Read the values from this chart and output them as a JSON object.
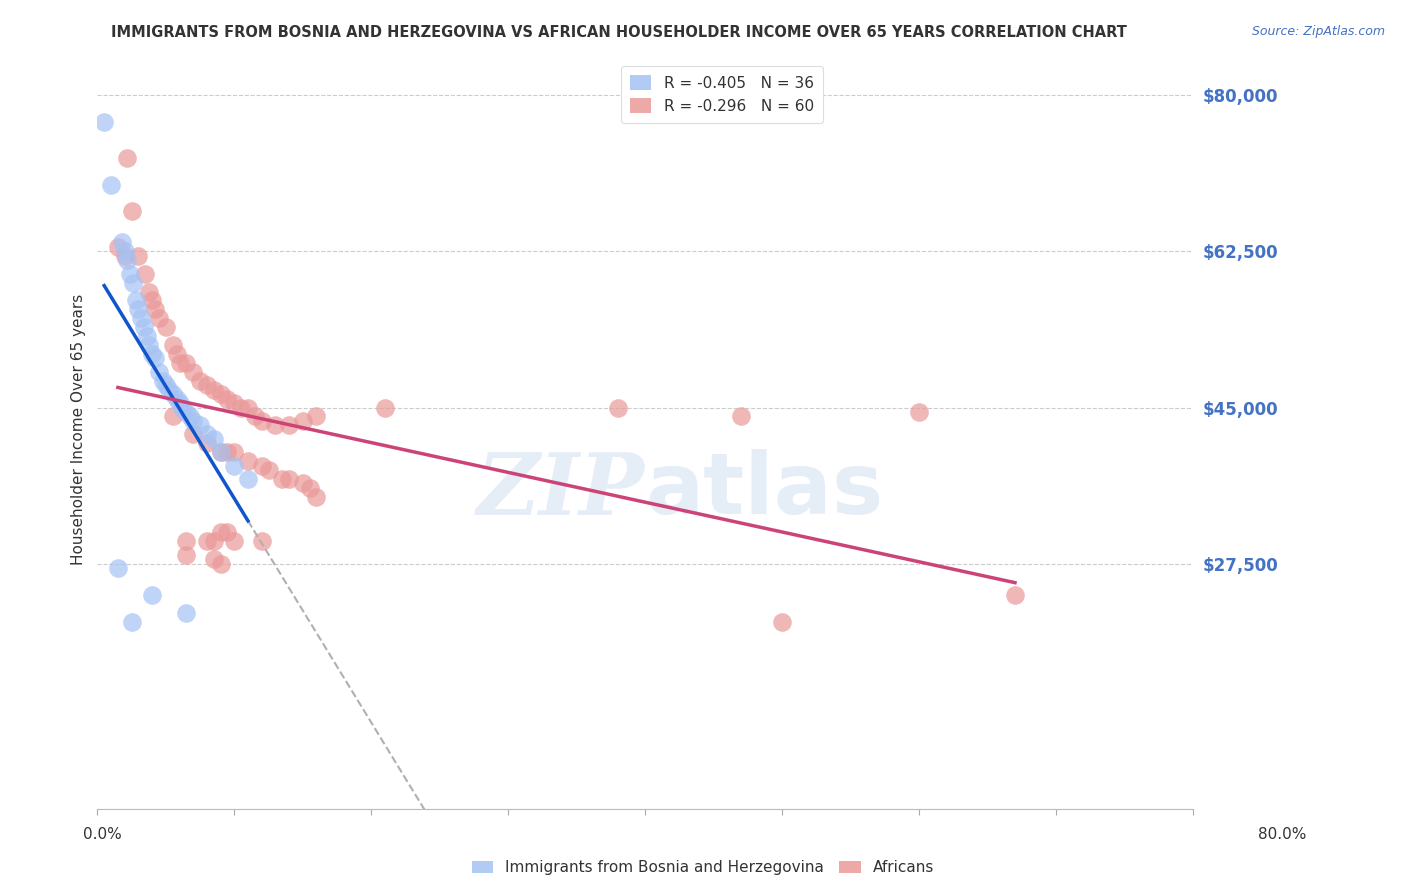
{
  "title": "IMMIGRANTS FROM BOSNIA AND HERZEGOVINA VS AFRICAN HOUSEHOLDER INCOME OVER 65 YEARS CORRELATION CHART",
  "source": "Source: ZipAtlas.com",
  "ylabel": "Householder Income Over 65 years",
  "legend1_r": "-0.405",
  "legend1_n": "36",
  "legend2_r": "-0.296",
  "legend2_n": "60",
  "color_bosnia": "#a4c2f4",
  "color_african": "#ea9999",
  "color_trendline_bosnia": "#1155cc",
  "color_trendline_african": "#cc4477",
  "color_trendline_extended": "#b0b0b0",
  "watermark": "ZIPatlas",
  "bosnia_points": [
    [
      0.005,
      77000
    ],
    [
      0.01,
      70000
    ],
    [
      0.018,
      63500
    ],
    [
      0.02,
      62500
    ],
    [
      0.022,
      61500
    ],
    [
      0.024,
      60000
    ],
    [
      0.026,
      59000
    ],
    [
      0.028,
      57000
    ],
    [
      0.03,
      56000
    ],
    [
      0.032,
      55000
    ],
    [
      0.034,
      54000
    ],
    [
      0.036,
      53000
    ],
    [
      0.038,
      52000
    ],
    [
      0.04,
      51000
    ],
    [
      0.042,
      50500
    ],
    [
      0.045,
      49000
    ],
    [
      0.048,
      48000
    ],
    [
      0.05,
      47500
    ],
    [
      0.052,
      47000
    ],
    [
      0.055,
      46500
    ],
    [
      0.058,
      46000
    ],
    [
      0.06,
      45500
    ],
    [
      0.062,
      45000
    ],
    [
      0.065,
      44500
    ],
    [
      0.068,
      44000
    ],
    [
      0.07,
      43500
    ],
    [
      0.075,
      43000
    ],
    [
      0.08,
      42000
    ],
    [
      0.085,
      41500
    ],
    [
      0.09,
      40000
    ],
    [
      0.1,
      38500
    ],
    [
      0.11,
      37000
    ],
    [
      0.015,
      27000
    ],
    [
      0.04,
      24000
    ],
    [
      0.065,
      22000
    ],
    [
      0.025,
      21000
    ]
  ],
  "african_points": [
    [
      0.015,
      63000
    ],
    [
      0.02,
      62000
    ],
    [
      0.022,
      73000
    ],
    [
      0.025,
      67000
    ],
    [
      0.03,
      62000
    ],
    [
      0.035,
      60000
    ],
    [
      0.038,
      58000
    ],
    [
      0.04,
      57000
    ],
    [
      0.042,
      56000
    ],
    [
      0.045,
      55000
    ],
    [
      0.05,
      54000
    ],
    [
      0.055,
      52000
    ],
    [
      0.058,
      51000
    ],
    [
      0.06,
      50000
    ],
    [
      0.065,
      50000
    ],
    [
      0.07,
      49000
    ],
    [
      0.075,
      48000
    ],
    [
      0.08,
      47500
    ],
    [
      0.085,
      47000
    ],
    [
      0.09,
      46500
    ],
    [
      0.095,
      46000
    ],
    [
      0.1,
      45500
    ],
    [
      0.105,
      45000
    ],
    [
      0.11,
      45000
    ],
    [
      0.115,
      44000
    ],
    [
      0.12,
      43500
    ],
    [
      0.13,
      43000
    ],
    [
      0.14,
      43000
    ],
    [
      0.15,
      43500
    ],
    [
      0.16,
      44000
    ],
    [
      0.055,
      44000
    ],
    [
      0.07,
      42000
    ],
    [
      0.08,
      41000
    ],
    [
      0.09,
      40000
    ],
    [
      0.095,
      40000
    ],
    [
      0.1,
      40000
    ],
    [
      0.11,
      39000
    ],
    [
      0.12,
      38500
    ],
    [
      0.125,
      38000
    ],
    [
      0.135,
      37000
    ],
    [
      0.14,
      37000
    ],
    [
      0.15,
      36500
    ],
    [
      0.155,
      36000
    ],
    [
      0.16,
      35000
    ],
    [
      0.21,
      45000
    ],
    [
      0.38,
      45000
    ],
    [
      0.47,
      44000
    ],
    [
      0.6,
      44500
    ],
    [
      0.065,
      30000
    ],
    [
      0.08,
      30000
    ],
    [
      0.085,
      30000
    ],
    [
      0.09,
      31000
    ],
    [
      0.095,
      31000
    ],
    [
      0.1,
      30000
    ],
    [
      0.12,
      30000
    ],
    [
      0.065,
      28500
    ],
    [
      0.085,
      28000
    ],
    [
      0.09,
      27500
    ],
    [
      0.5,
      21000
    ],
    [
      0.67,
      24000
    ]
  ],
  "xlim": [
    0.0,
    0.8
  ],
  "ylim": [
    0,
    85000
  ],
  "x_ticks": [
    0.0,
    0.1,
    0.2,
    0.3,
    0.4,
    0.5,
    0.6,
    0.7,
    0.8
  ],
  "y_ticks": [
    0,
    27500,
    45000,
    62500,
    80000
  ],
  "y_tick_labels": [
    "",
    "$27,500",
    "$45,000",
    "$62,500",
    "$80,000"
  ],
  "background_color": "#ffffff",
  "grid_color": "#cccccc",
  "title_color": "#333333",
  "label_color": "#333333",
  "axis_label_color": "#4472c4"
}
